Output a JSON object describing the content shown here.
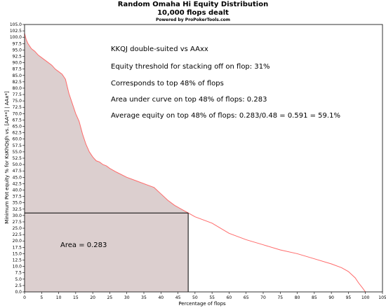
{
  "chart_data": {
    "type": "area",
    "title": "Random Omaha Hi Equity Distribution",
    "subtitle": "10,000 flops dealt",
    "credit": "Powered by ProPokerTools.com",
    "xlabel": "Percentage of flops",
    "ylabel": "Minimum Pot equity % for KsKhQsJh vs. [AA**] | AAx*]",
    "xlim": [
      0,
      105
    ],
    "ylim": [
      0,
      105
    ],
    "x_ticks": [
      "0",
      "5",
      "10",
      "15",
      "20",
      "25",
      "30",
      "35",
      "40",
      "45",
      "50",
      "55",
      "60",
      "65",
      "70",
      "75",
      "80",
      "85",
      "90",
      "95",
      "100",
      "105"
    ],
    "y_ticks": [
      "0.0",
      "2.5",
      "5.0",
      "7.5",
      "10.0",
      "12.5",
      "15.0",
      "17.5",
      "20.0",
      "22.5",
      "25.0",
      "27.5",
      "30.0",
      "32.5",
      "35.0",
      "37.5",
      "40.0",
      "42.5",
      "45.0",
      "47.5",
      "50.0",
      "52.5",
      "55.0",
      "57.5",
      "60.0",
      "62.5",
      "65.0",
      "67.5",
      "70.0",
      "72.5",
      "75.0",
      "77.5",
      "80.0",
      "82.5",
      "85.0",
      "87.5",
      "90.0",
      "92.5",
      "95.0",
      "97.5",
      "100.0",
      "102.5",
      "105.0"
    ],
    "grid": false,
    "series": [
      {
        "x": [
          0,
          0.5,
          1,
          2,
          3,
          4,
          5,
          6,
          7,
          8,
          9,
          10,
          11,
          12,
          13,
          14,
          15,
          16,
          17,
          18,
          19,
          20,
          21,
          22,
          23,
          24,
          25,
          27,
          30,
          33,
          36,
          38,
          40,
          42,
          44,
          46,
          48,
          50,
          55,
          60,
          65,
          70,
          75,
          80,
          85,
          90,
          93,
          95,
          97,
          98,
          99,
          100
        ],
        "values": [
          101.5,
          99,
          97.5,
          95.5,
          94.5,
          93,
          92,
          91,
          90,
          89,
          87.5,
          86.5,
          85.5,
          83.5,
          78,
          74,
          70,
          67,
          62,
          58,
          55,
          53,
          51.5,
          51,
          50,
          49.5,
          48.5,
          47,
          45,
          43.5,
          42,
          41,
          38.5,
          36,
          34,
          32.5,
          31,
          29.5,
          27,
          23,
          20.5,
          18.5,
          16.5,
          15,
          13,
          11,
          9.5,
          8,
          5.5,
          3.5,
          1.8,
          0
        ]
      }
    ],
    "threshold": {
      "y": 31,
      "x": 48
    },
    "annotations": [
      "KKQJ double-suited vs AAxx",
      "Equity threshold for stacking off on flop: 31%",
      "Corresponds to top 48% of flops",
      "Area under curve on top 48% of flops: 0.283",
      "Average equity on top 48% of flops: 0.283/0.48 = 0.591 = 59.1%"
    ],
    "area_label": "Area = 0.283",
    "colors": {
      "curve": "#ff6a6a",
      "fill": "#dccfcf",
      "frame": "#000000"
    }
  }
}
